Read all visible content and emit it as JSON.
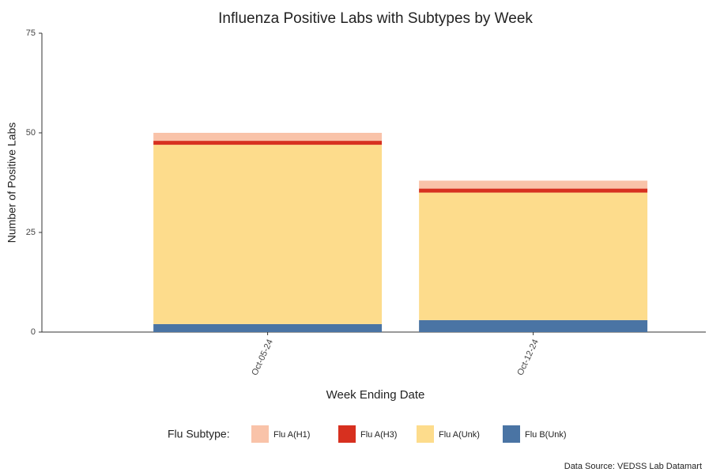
{
  "chart_data": {
    "type": "stacked_bar",
    "title": "Influenza Positive Labs with Subtypes by Week",
    "x_label": "Week Ending Date",
    "y_label": "Number of Positive Labs",
    "categories": [
      "Oct-05-24",
      "Oct-12-24"
    ],
    "series": [
      {
        "name": "Flu A(H1)",
        "color": "#f9c3a9",
        "values": [
          2,
          2
        ]
      },
      {
        "name": "Flu A(H3)",
        "color": "#d7301f",
        "values": [
          1,
          1
        ]
      },
      {
        "name": "Flu A(Unk)",
        "color": "#fddc8c",
        "values": [
          45,
          32
        ]
      },
      {
        "name": "Flu B(Unk)",
        "color": "#4a74a4",
        "values": [
          2,
          3
        ]
      }
    ],
    "ylim": [
      0,
      75
    ],
    "yticks": [
      0,
      25,
      50,
      75
    ],
    "grid": false,
    "legend_title": "Flu Subtype:",
    "legend_position": "bottom",
    "caption": "Data Source: VEDSS Lab Datamart"
  }
}
